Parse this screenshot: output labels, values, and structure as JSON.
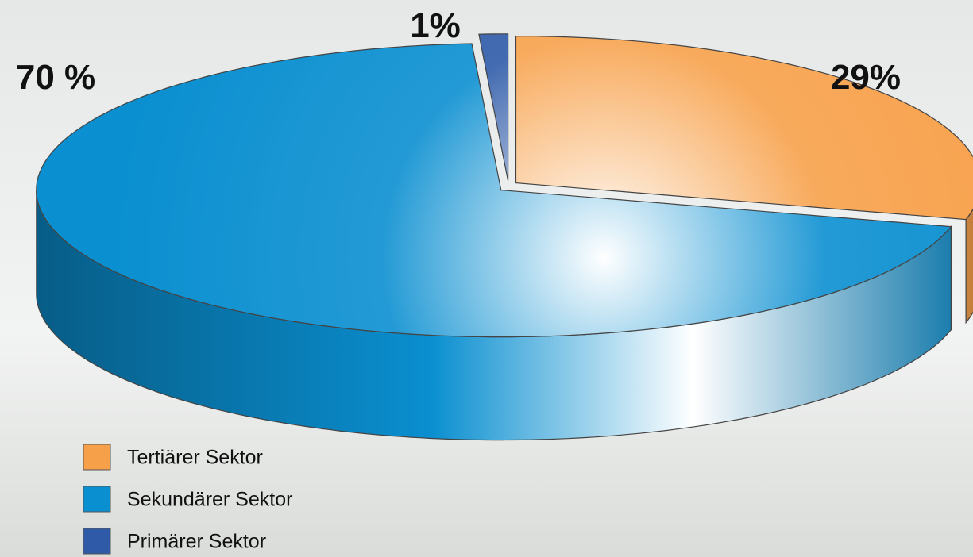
{
  "chart_data": {
    "type": "pie",
    "categories": [
      "Tertiärer Sektor",
      "Sekundärer Sektor",
      "Primärer Sektor"
    ],
    "values": [
      29,
      70,
      1
    ],
    "value_labels": [
      "29%",
      "70 %",
      "1%"
    ],
    "colors": [
      "#f7a04a",
      "#0a8fd0",
      "#2e5aa8"
    ]
  }
}
